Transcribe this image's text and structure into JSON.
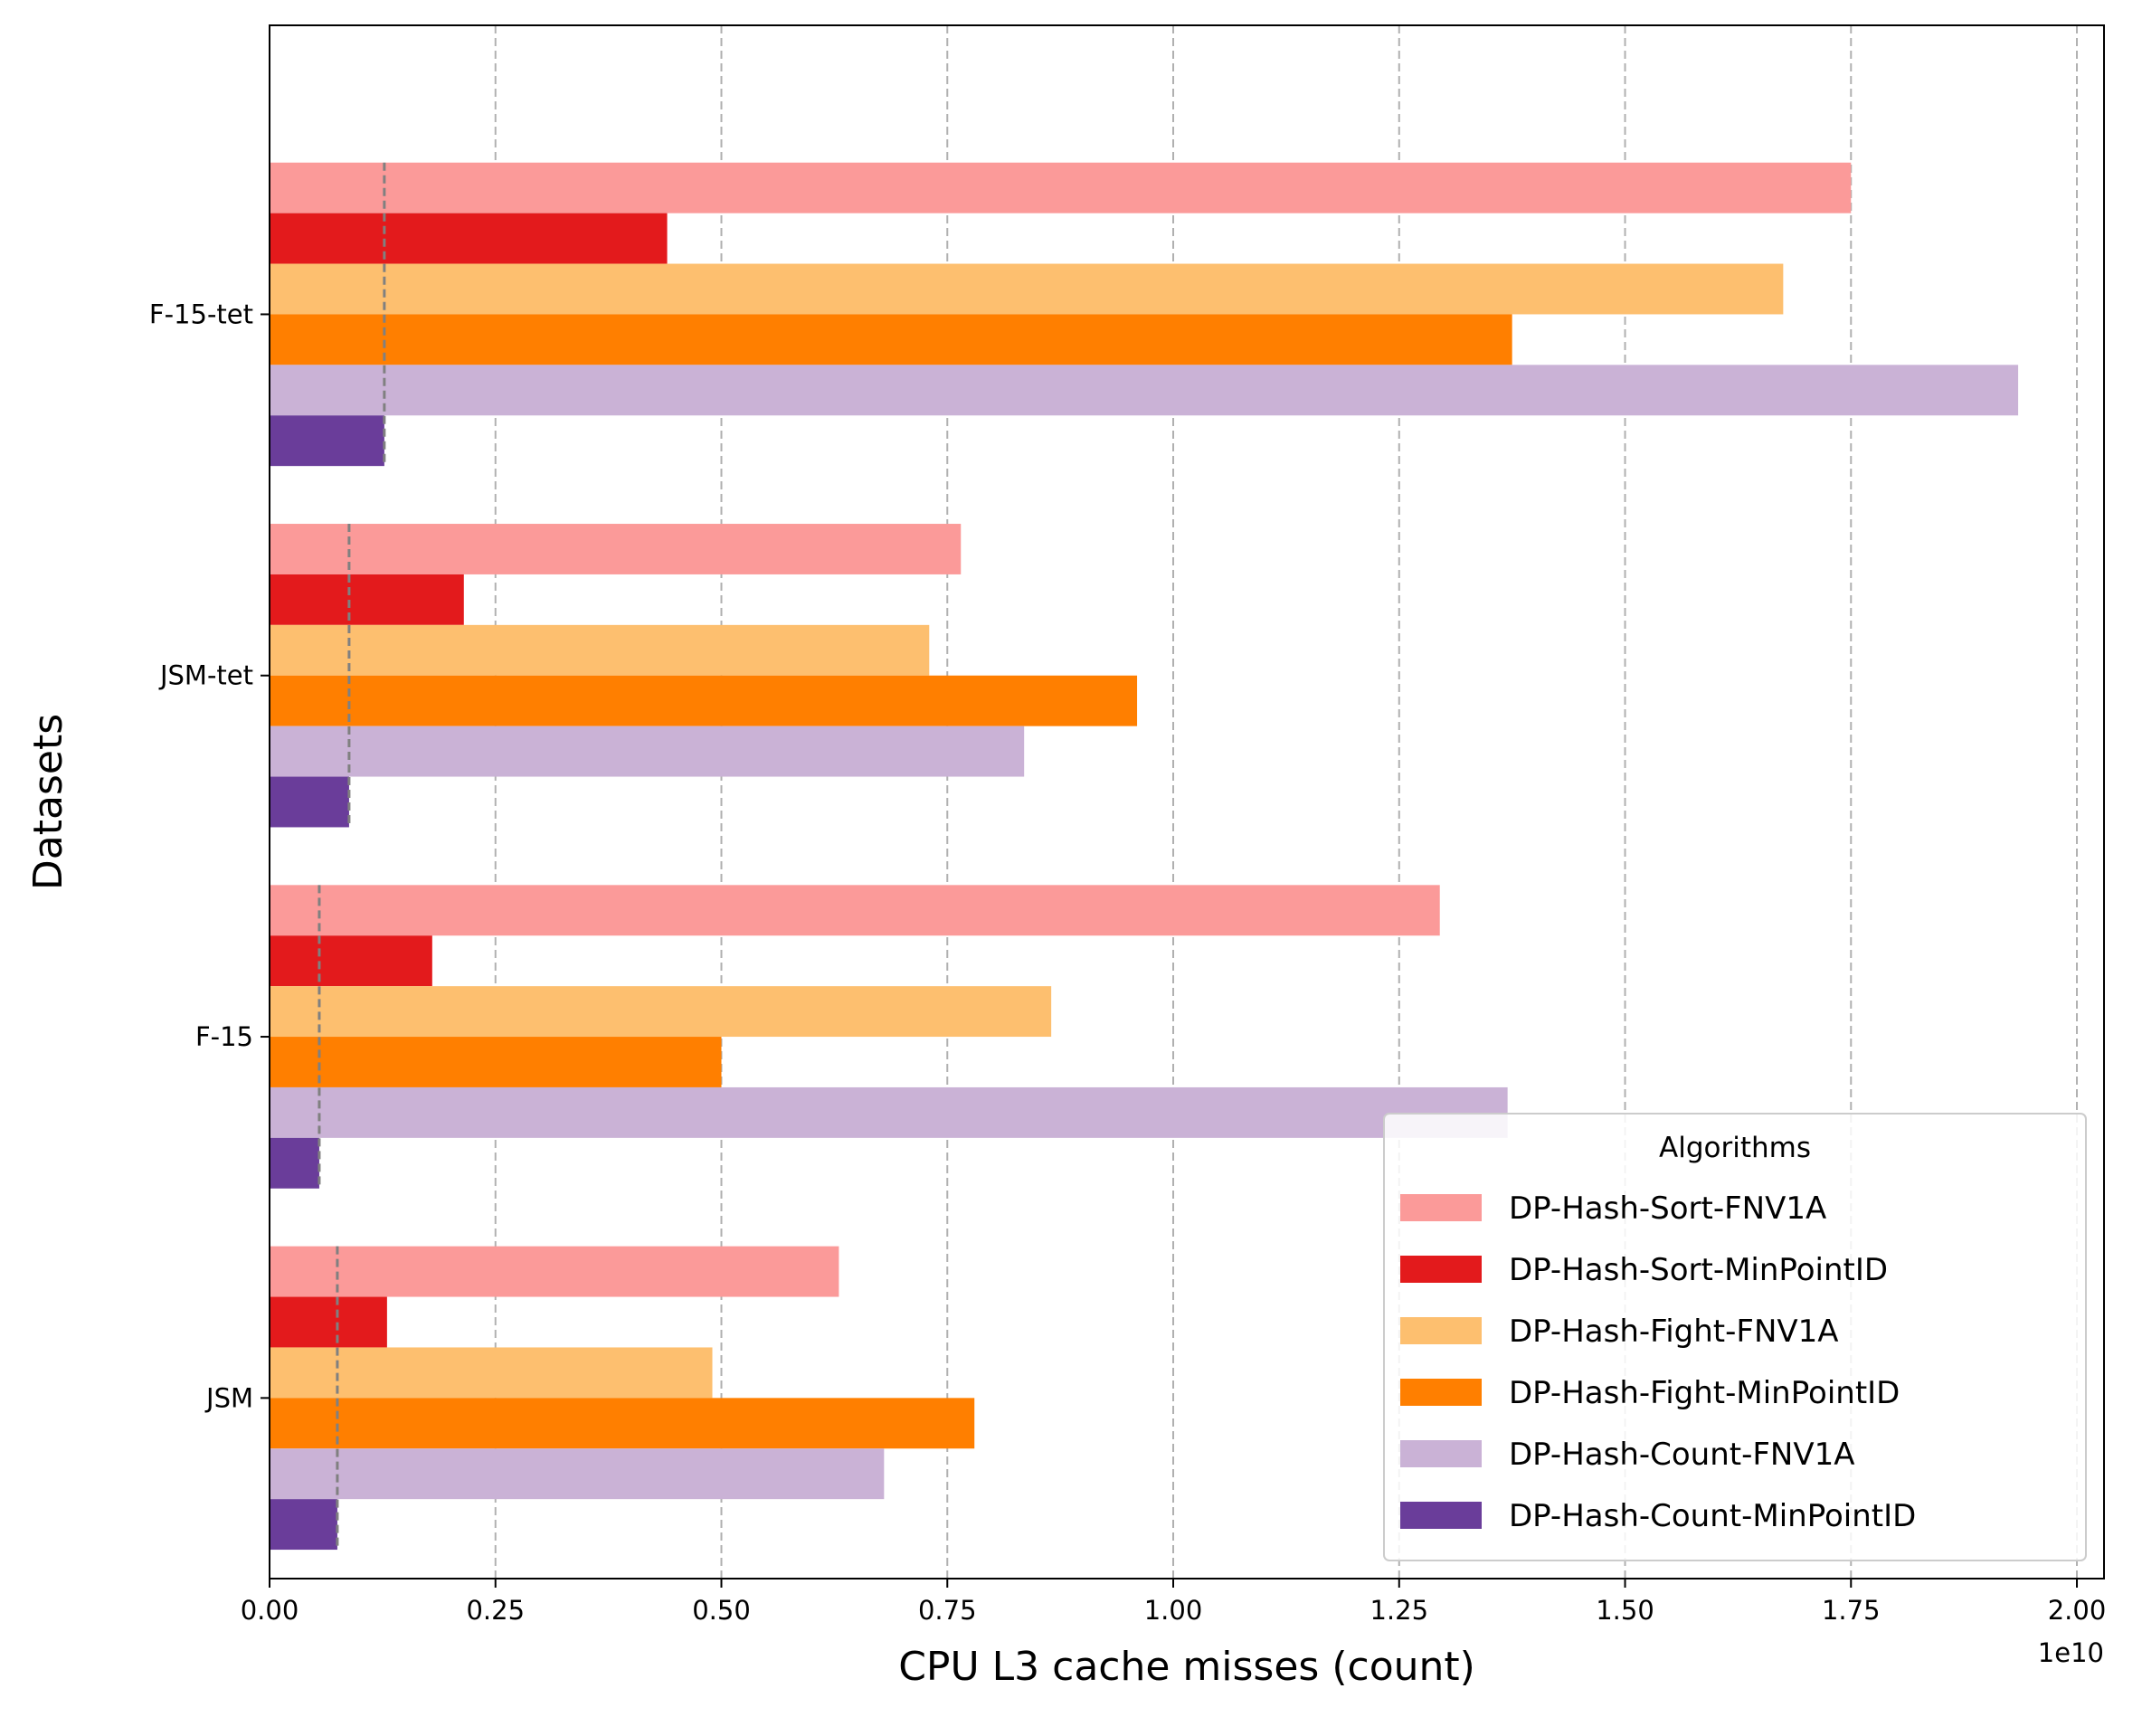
{
  "chart_data": {
    "type": "bar",
    "orientation": "horizontal",
    "title": "",
    "xlabel": "CPU L3 cache misses (count)",
    "ylabel": "Datasets",
    "x_offset_label": "1e10",
    "xlim": [
      0,
      2.03
    ],
    "x_ticks": [
      "0.00",
      "0.25",
      "0.50",
      "0.75",
      "1.00",
      "1.25",
      "1.50",
      "1.75",
      "2.00"
    ],
    "x_tick_values": [
      0,
      0.25,
      0.5,
      0.75,
      1.0,
      1.25,
      1.5,
      1.75,
      2.0
    ],
    "categories": [
      "JSM",
      "F-15",
      "JSM-tet",
      "F-15-tet"
    ],
    "grid": "x, dashed",
    "legend": {
      "title": "Algorithms",
      "placement": "lower-right"
    },
    "reference_lines": "dashed gray vertical line per dataset at the DP-Hash-Count-MinPointID value",
    "series": [
      {
        "name": "DP-Hash-Sort-FNV1A",
        "color": "#fb9a99",
        "values": [
          0.63,
          1.295,
          0.765,
          1.75
        ]
      },
      {
        "name": "DP-Hash-Sort-MinPointID",
        "color": "#e31a1c",
        "values": [
          0.13,
          0.18,
          0.215,
          0.44
        ]
      },
      {
        "name": "DP-Hash-Fight-FNV1A",
        "color": "#fdbf6f",
        "values": [
          0.49,
          0.865,
          0.73,
          1.675
        ]
      },
      {
        "name": "DP-Hash-Fight-MinPointID",
        "color": "#ff7f00",
        "values": [
          0.78,
          0.5,
          0.96,
          1.375
        ]
      },
      {
        "name": "DP-Hash-Count-FNV1A",
        "color": "#cab2d6",
        "values": [
          0.68,
          1.37,
          0.835,
          1.935
        ]
      },
      {
        "name": "DP-Hash-Count-MinPointID",
        "color": "#6a3d9a",
        "values": [
          0.075,
          0.055,
          0.088,
          0.127
        ]
      }
    ]
  }
}
